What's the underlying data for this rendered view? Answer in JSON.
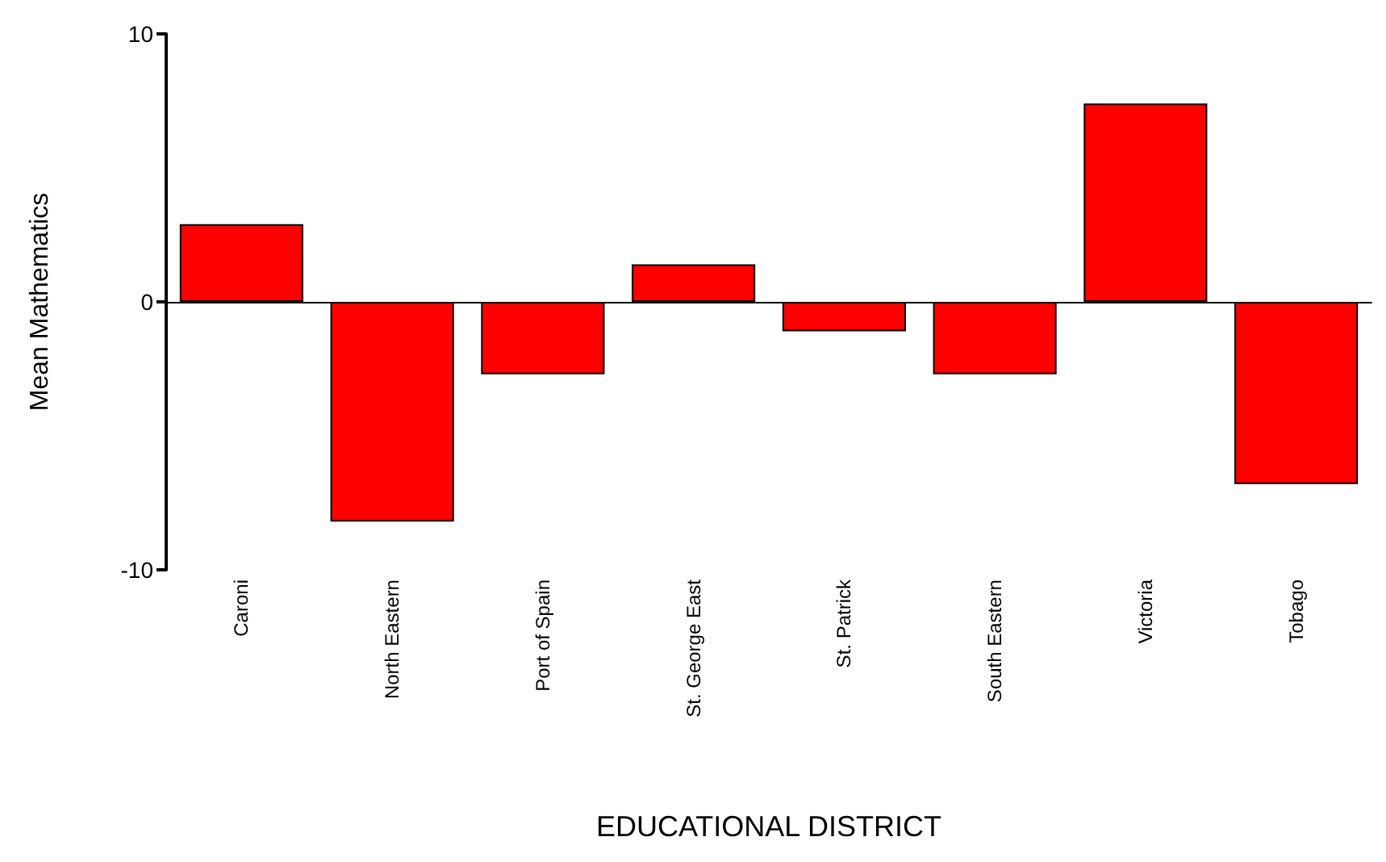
{
  "chart_data": {
    "type": "bar",
    "xlabel": "EDUCATIONAL DISTRICT",
    "ylabel": "Mean Mathematics",
    "categories": [
      "Caroni",
      "North Eastern",
      "Port of Spain",
      "St. George East",
      "St. Patrick",
      "South Eastern",
      "Victoria",
      "Tobago"
    ],
    "values": [
      2.9,
      -8.2,
      -2.7,
      1.4,
      -1.1,
      -2.7,
      7.4,
      -6.8
    ],
    "color": "#ff0000",
    "ylim": [
      -10,
      10
    ],
    "yticks": [
      -10,
      0,
      10
    ]
  }
}
